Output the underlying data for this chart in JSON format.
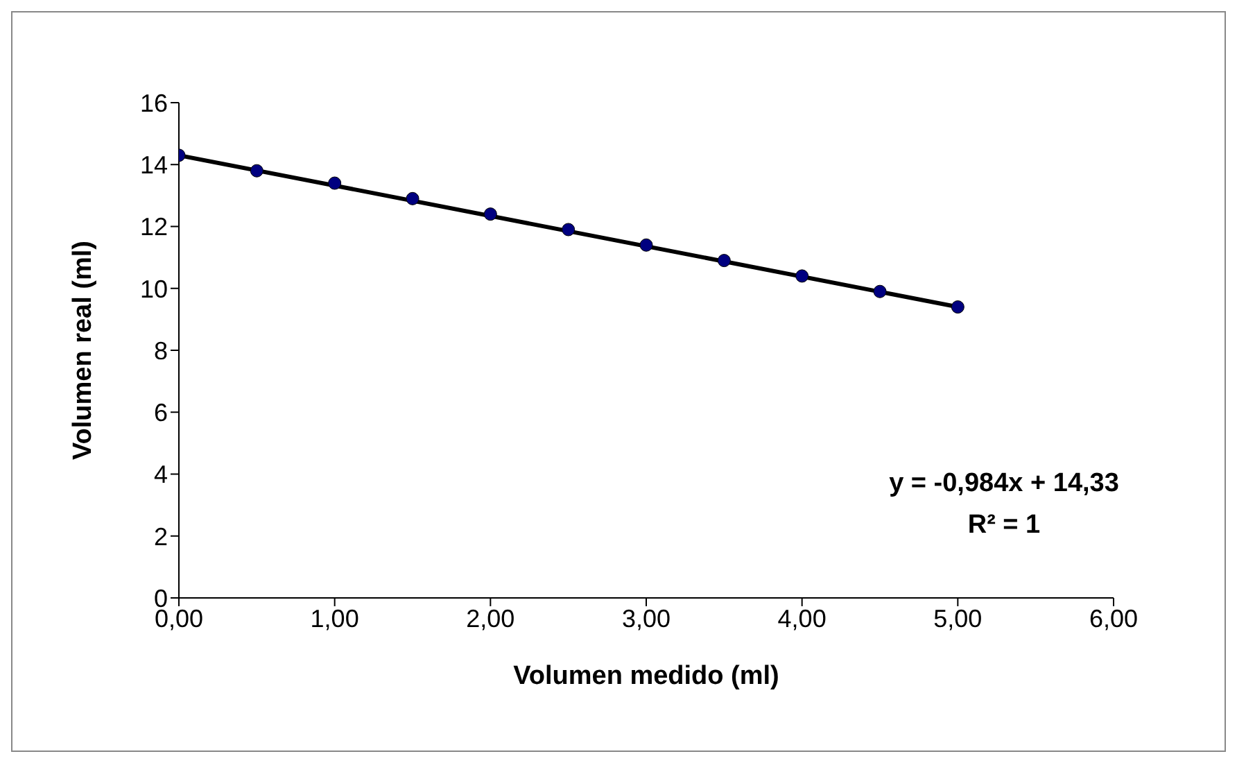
{
  "chart_data": {
    "type": "scatter",
    "xlabel": "Volumen medido (ml)",
    "ylabel": "Volumen real (ml)",
    "x": [
      0,
      0.5,
      1,
      1.5,
      2,
      2.5,
      3,
      3.5,
      4,
      4.5,
      5
    ],
    "series": [
      {
        "color": "#000080",
        "values": [
          14.3,
          13.8,
          13.4,
          12.9,
          12.4,
          11.9,
          11.4,
          10.9,
          10.4,
          9.9,
          9.4
        ],
        "marker": "circle"
      },
      {
        "type": "line",
        "color": "#000000",
        "x": [
          0,
          5
        ],
        "values": [
          14.3,
          9.4
        ],
        "marker": "none"
      }
    ],
    "xlim": [
      0,
      6
    ],
    "xticks": [
      {
        "value": 0,
        "label": "0,00"
      },
      {
        "value": 1,
        "label": "1,00"
      },
      {
        "value": 2,
        "label": "2,00"
      },
      {
        "value": 3,
        "label": "3,00"
      },
      {
        "value": 4,
        "label": "4,00"
      },
      {
        "value": 5,
        "label": "5,00"
      },
      {
        "value": 6,
        "label": "6,00"
      }
    ],
    "ylim": [
      0,
      16
    ],
    "yticks": [
      0,
      2,
      4,
      6,
      8,
      10,
      12,
      14,
      16
    ],
    "annotations": [
      "y = -0,984x + 14,33",
      "R² = 1"
    ],
    "grid": false,
    "legend": false
  }
}
